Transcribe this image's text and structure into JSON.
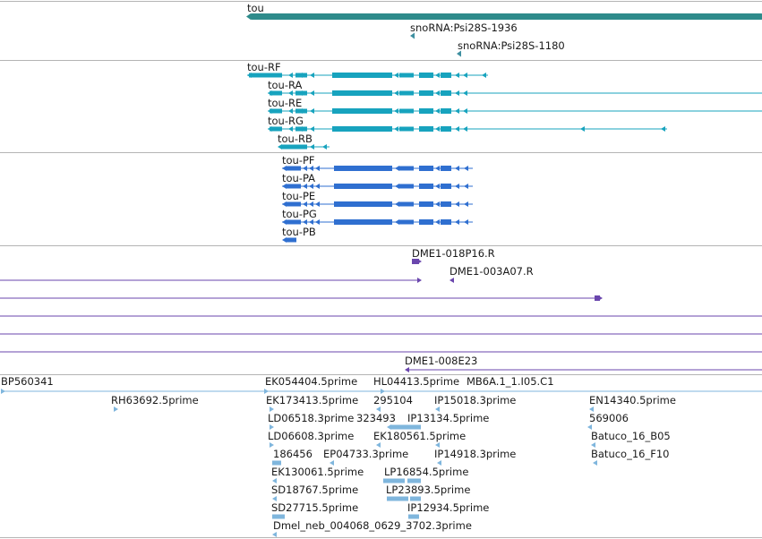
{
  "colors": {
    "gene": "#2e8b8b",
    "snorna": "#3e8fa0",
    "transcript_r": "#17a3be",
    "transcript_p": "#2f6fd0",
    "clone": "#6a46ad",
    "est": "#7fb6dd",
    "divider": "#b4b4b4"
  },
  "tracks": {
    "gene": {
      "gene_label": "tou",
      "snorna_1": "snoRNA:Psi28S-1936",
      "snorna_2": "snoRNA:Psi28S-1180"
    },
    "transcripts": [
      "tou-RF",
      "tou-RA",
      "tou-RE",
      "tou-RG",
      "tou-RB"
    ],
    "proteins": [
      "tou-PF",
      "tou-PA",
      "tou-PE",
      "tou-PG",
      "tou-PB"
    ],
    "clones": {
      "c1": "DME1-018P16.R",
      "c2": "DME1-003A07.R",
      "c3": "DME1-008E23"
    },
    "ests": {
      "bp560341": "BP560341",
      "rh63692": "RH63692.5prime",
      "ek054404": "EK054404.5prime",
      "ek173413": "EK173413.5prime",
      "ld06518": "LD06518.3prime",
      "n323493": "323493",
      "ld06608": "LD06608.3prime",
      "n186456": "186456",
      "ep04733": "EP04733.3prime",
      "ek130061": "EK130061.5prime",
      "sd18767": "SD18767.5prime",
      "sd27715": "SD27715.5prime",
      "dmel_neb": "Dmel_neb_004068_0629_3702.3prime",
      "hl04413": "HL04413.5prime",
      "mb6a": "MB6A.1_1.I05.C1",
      "n295104": "295104",
      "ip15018": "IP15018.3prime",
      "ip13134": "IP13134.5prime",
      "ek180561": "EK180561.5prime",
      "ip14918": "IP14918.3prime",
      "lp16854": "LP16854.5prime",
      "lp23893": "LP23893.5prime",
      "ip12934": "IP12934.5prime",
      "en14340": "EN14340.5prime",
      "n569006": "569006",
      "batuco_b05": "Batuco_16_B05",
      "batuco_f10": "Batuco_16_F10"
    }
  }
}
